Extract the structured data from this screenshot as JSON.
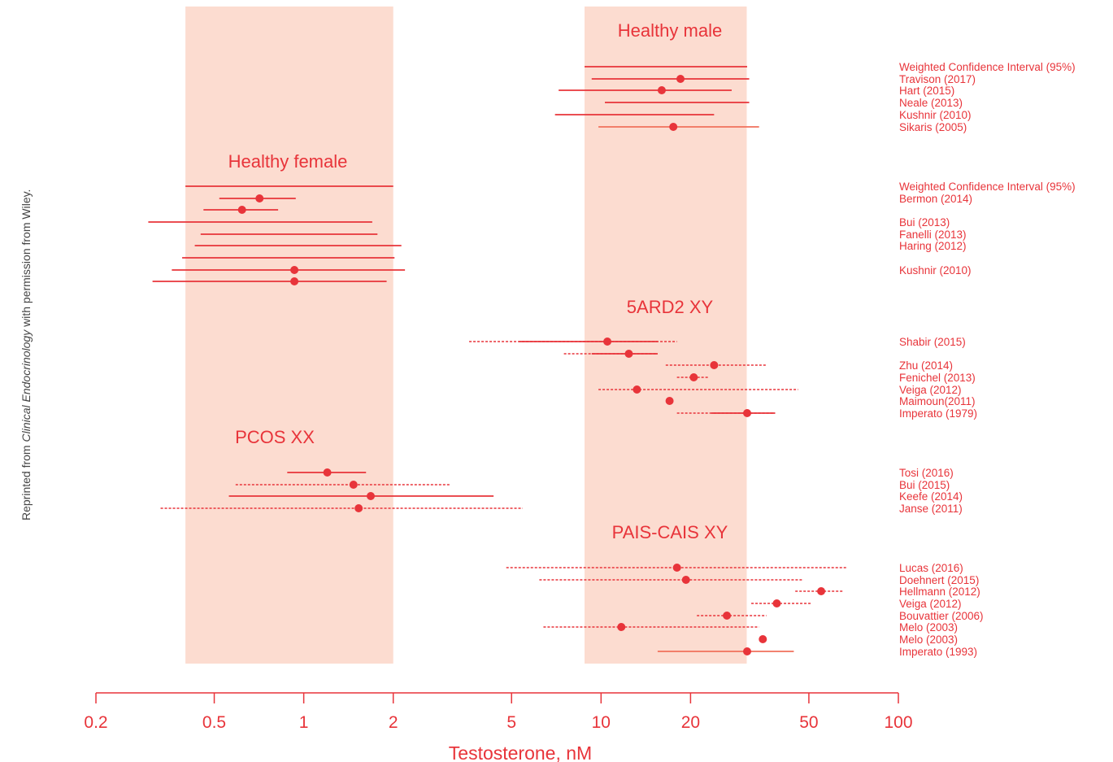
{
  "credit": {
    "prefix": "Reprinted from ",
    "journal": "Clinical Endocrinology",
    "suffix": " with permission from Wiley."
  },
  "colors": {
    "accent": "#e8343a",
    "band": "#fcdcd0",
    "line_light": "#f0705c"
  },
  "chart_data": {
    "type": "forest",
    "xlabel": "Testosterone, nM",
    "x_scale": "log",
    "xlim": [
      0.2,
      100
    ],
    "x_ticks": [
      0.2,
      0.5,
      1,
      2,
      5,
      10,
      20,
      50,
      100
    ],
    "x_tick_labels": [
      "0.2",
      "0.5",
      "1",
      "2",
      "5",
      "10",
      "20",
      "50",
      "100"
    ],
    "reference_bands": [
      {
        "name": "Healthy female",
        "range": [
          0.4,
          2.0
        ]
      },
      {
        "name": "Healthy male",
        "range": [
          8.8,
          30.9
        ]
      }
    ],
    "groups": [
      {
        "title": "Healthy male",
        "studies": [
          {
            "label": "Weighted Confidence Interval (95%)",
            "lo": 8.8,
            "hi": 31,
            "point": null,
            "style": "solid"
          },
          {
            "label": "Travison (2017)",
            "lo": 9.3,
            "hi": 31.5,
            "point": 18.5,
            "style": "solid"
          },
          {
            "label": "Hart (2015)",
            "lo": 7.2,
            "hi": 27.5,
            "point": 16,
            "style": "solid"
          },
          {
            "label": "Neale (2013)",
            "lo": 10.3,
            "hi": 31.5,
            "point": null,
            "style": "solid"
          },
          {
            "label": "Kushnir (2010)",
            "lo": 7,
            "hi": 24,
            "point": null,
            "style": "solid"
          },
          {
            "label": "Sikaris (2005)",
            "lo": 9.8,
            "hi": 34,
            "point": 17.5,
            "style": "solid"
          }
        ]
      },
      {
        "title": "Healthy female",
        "studies": [
          {
            "label": "Weighted Confidence Interval (95%)",
            "lo": 0.4,
            "hi": 2.0,
            "point": null,
            "style": "solid"
          },
          {
            "label": "Bermon (2014)",
            "lo": 0.52,
            "hi": 0.94,
            "point": 0.71,
            "style": "solid"
          },
          {
            "label": "",
            "lo": 0.46,
            "hi": 0.82,
            "point": 0.62,
            "style": "solid"
          },
          {
            "label": "Bui (2013)",
            "lo": 0.3,
            "hi": 1.7,
            "point": null,
            "style": "solid"
          },
          {
            "label": "Fanelli (2013)",
            "lo": 0.45,
            "hi": 1.77,
            "point": null,
            "style": "solid"
          },
          {
            "label": "Haring (2012)",
            "lo": 0.43,
            "hi": 2.13,
            "point": null,
            "style": "solid"
          },
          {
            "label": "",
            "lo": 0.39,
            "hi": 2.02,
            "point": null,
            "style": "solid"
          },
          {
            "label": "Kushnir (2010)",
            "lo": 0.36,
            "hi": 2.19,
            "point": 0.93,
            "style": "solid"
          },
          {
            "label": "",
            "lo": 0.31,
            "hi": 1.9,
            "point": 0.93,
            "style": "solid"
          }
        ]
      },
      {
        "title": "5ARD2 XY",
        "studies": [
          {
            "label": "Shabir (2015)",
            "lo": 3.6,
            "hi": 18,
            "point": 10.5,
            "style": "dashed",
            "solid_lo": 5.3,
            "solid_hi": 15.5
          },
          {
            "label": "",
            "lo": 7.5,
            "hi": 15.5,
            "point": 12.4,
            "style": "dashed",
            "solid_lo": 9.3,
            "solid_hi": 15.5
          },
          {
            "label": "Zhu (2014)",
            "lo": 16.5,
            "hi": 36,
            "point": 24,
            "style": "dashed"
          },
          {
            "label": "Fenichel (2013)",
            "lo": 18,
            "hi": 23,
            "point": 20.5,
            "style": "dashed"
          },
          {
            "label": "Veiga (2012)",
            "lo": 9.8,
            "hi": 46,
            "point": 13.2,
            "style": "dashed"
          },
          {
            "label": "Maimoun(2011)",
            "lo": 17,
            "hi": 17,
            "point": 17,
            "style": "solid"
          },
          {
            "label": "Imperato (1979)",
            "lo": 18,
            "hi": 38.5,
            "point": 31,
            "style": "dashed",
            "solid_lo": 23.5,
            "solid_hi": 38.5
          }
        ]
      },
      {
        "title": "PCOS XX",
        "studies": [
          {
            "label": "Tosi (2016)",
            "lo": 0.88,
            "hi": 1.62,
            "point": 1.2,
            "style": "solid"
          },
          {
            "label": "Bui (2015)",
            "lo": 0.59,
            "hi": 3.13,
            "point": 1.47,
            "style": "dashed"
          },
          {
            "label": "Keefe (2014)",
            "lo": 0.56,
            "hi": 4.35,
            "point": 1.68,
            "style": "solid"
          },
          {
            "label": "Janse (2011)",
            "lo": 0.33,
            "hi": 5.45,
            "point": 1.53,
            "style": "dashed"
          }
        ]
      },
      {
        "title": "PAIS-CAIS XY",
        "studies": [
          {
            "label": "Lucas (2016)",
            "lo": 4.8,
            "hi": 67,
            "point": 18,
            "style": "dashed"
          },
          {
            "label": "Doehnert (2015)",
            "lo": 6.2,
            "hi": 48,
            "point": 19.3,
            "style": "dashed"
          },
          {
            "label": "Hellmann (2012)",
            "lo": 45,
            "hi": 65,
            "point": 55,
            "style": "dashed"
          },
          {
            "label": "Veiga (2012)",
            "lo": 32,
            "hi": 51,
            "point": 39,
            "style": "dashed"
          },
          {
            "label": "Bouvattier (2006)",
            "lo": 21,
            "hi": 36,
            "point": 26.5,
            "style": "dashed"
          },
          {
            "label": "Melo (2003)",
            "lo": 6.4,
            "hi": 34,
            "point": 11.7,
            "style": "dashed"
          },
          {
            "label": "Melo (2003)",
            "lo": 35,
            "hi": 35,
            "point": 35,
            "style": "solid"
          },
          {
            "label": "Imperato  (1993)",
            "lo": 15.5,
            "hi": 44.5,
            "point": 31,
            "style": "solid"
          }
        ]
      }
    ]
  }
}
